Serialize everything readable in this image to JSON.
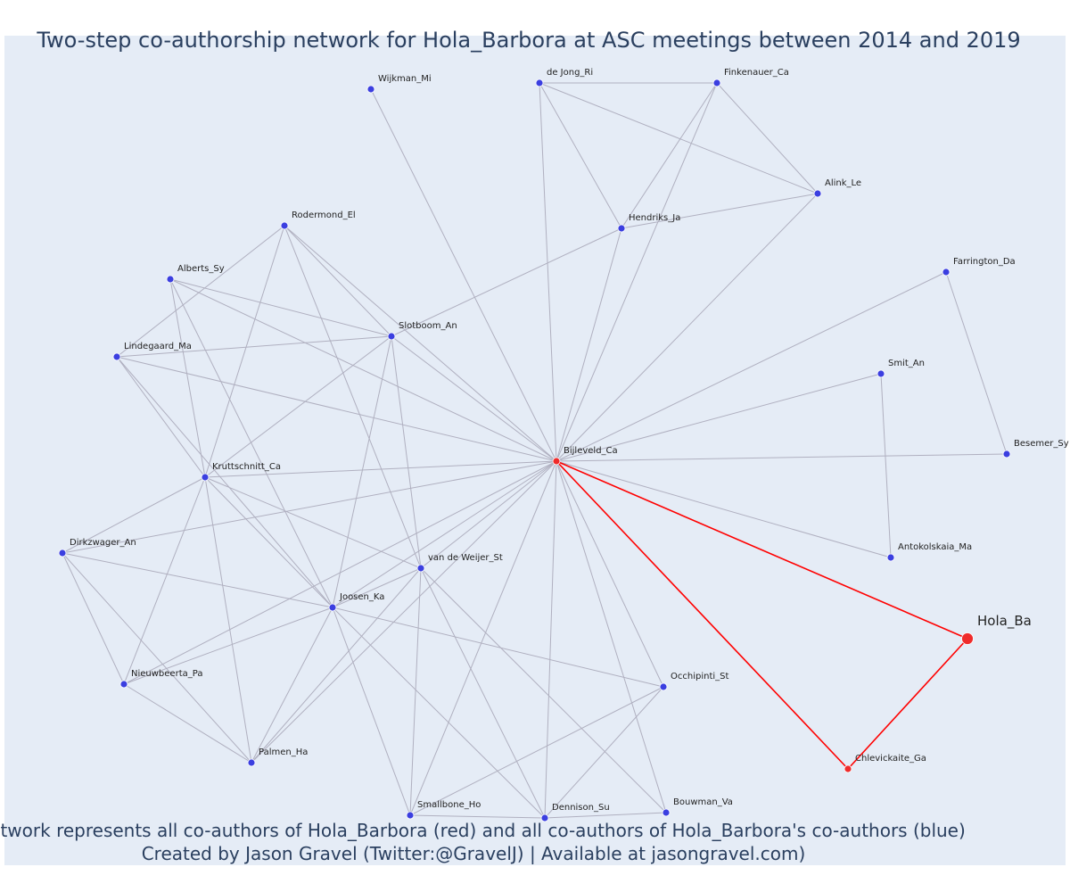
{
  "title": "Two-step co-authorship network for Hola_Barbora at ASC meetings between 2014 and 2019",
  "caption": {
    "line1": "Network represents all co-authors of Hola_Barbora (red) and all co-authors of Hola_Barbora's co-authors (blue)",
    "line2": "Created by Jason Gravel (Twitter:@GravelJ) | Available at jasongravel.com)"
  },
  "colors": {
    "background": "#e5ecf6",
    "blue_node": "#3b3fe0",
    "red_node": "#ef2b2b",
    "gray_edge": "#b0b0c0",
    "red_edge": "#ff0000",
    "text": "#2a3f5f"
  },
  "nodes": [
    {
      "id": "Wijkman_Mi",
      "label": "Wijkman_Mi",
      "group": "blue"
    },
    {
      "id": "de Jong_Ri",
      "label": "de Jong_Ri",
      "group": "blue"
    },
    {
      "id": "Finkenauer_Ca",
      "label": "Finkenauer_Ca",
      "group": "blue"
    },
    {
      "id": "Alink_Le",
      "label": "Alink_Le",
      "group": "blue"
    },
    {
      "id": "Hendriks_Ja",
      "label": "Hendriks_Ja",
      "group": "blue"
    },
    {
      "id": "Rodermond_El",
      "label": "Rodermond_El",
      "group": "blue"
    },
    {
      "id": "Alberts_Sy",
      "label": "Alberts_Sy",
      "group": "blue"
    },
    {
      "id": "Slotboom_An",
      "label": "Slotboom_An",
      "group": "blue"
    },
    {
      "id": "Lindegaard_Ma",
      "label": "Lindegaard_Ma",
      "group": "blue"
    },
    {
      "id": "Farrington_Da",
      "label": "Farrington_Da",
      "group": "blue"
    },
    {
      "id": "Smit_An",
      "label": "Smit_An",
      "group": "blue"
    },
    {
      "id": "Bijleveld_Ca",
      "label": "Bijleveld_Ca",
      "group": "red"
    },
    {
      "id": "Besemer_Sy",
      "label": "Besemer_Sy",
      "group": "blue"
    },
    {
      "id": "Kruttschnitt_Ca",
      "label": "Kruttschnitt_Ca",
      "group": "blue"
    },
    {
      "id": "Dirkzwager_An",
      "label": "Dirkzwager_An",
      "group": "blue"
    },
    {
      "id": "van de Weijer_St",
      "label": "van de Weijer_St",
      "group": "blue"
    },
    {
      "id": "Antokolskaia_Ma",
      "label": "Antokolskaia_Ma",
      "group": "blue"
    },
    {
      "id": "Joosen_Ka",
      "label": "Joosen_Ka",
      "group": "blue"
    },
    {
      "id": "Hola_Ba",
      "label": "Hola_Ba",
      "group": "focal"
    },
    {
      "id": "Nieuwbeerta_Pa",
      "label": "Nieuwbeerta_Pa",
      "group": "blue"
    },
    {
      "id": "Occhipinti_St",
      "label": "Occhipinti_St",
      "group": "blue"
    },
    {
      "id": "Palmen_Ha",
      "label": "Palmen_Ha",
      "group": "blue"
    },
    {
      "id": "Chlevickaite_Ga",
      "label": "Chlevickaite_Ga",
      "group": "red"
    },
    {
      "id": "Smallbone_Ho",
      "label": "Smallbone_Ho",
      "group": "blue"
    },
    {
      "id": "Dennison_Su",
      "label": "Dennison_Su",
      "group": "blue"
    },
    {
      "id": "Bouwman_Va",
      "label": "Bouwman_Va",
      "group": "blue"
    }
  ],
  "edges": [
    [
      "Bijleveld_Ca",
      "Hola_Ba",
      "red"
    ],
    [
      "Bijleveld_Ca",
      "Chlevickaite_Ga",
      "red"
    ],
    [
      "Hola_Ba",
      "Chlevickaite_Ga",
      "red"
    ],
    [
      "Bijleveld_Ca",
      "Wijkman_Mi",
      "gray"
    ],
    [
      "Bijleveld_Ca",
      "de Jong_Ri",
      "gray"
    ],
    [
      "Bijleveld_Ca",
      "Finkenauer_Ca",
      "gray"
    ],
    [
      "Bijleveld_Ca",
      "Alink_Le",
      "gray"
    ],
    [
      "Bijleveld_Ca",
      "Hendriks_Ja",
      "gray"
    ],
    [
      "Bijleveld_Ca",
      "Farrington_Da",
      "gray"
    ],
    [
      "Bijleveld_Ca",
      "Smit_An",
      "gray"
    ],
    [
      "Bijleveld_Ca",
      "Besemer_Sy",
      "gray"
    ],
    [
      "Bijleveld_Ca",
      "Antokolskaia_Ma",
      "gray"
    ],
    [
      "Bijleveld_Ca",
      "Occhipinti_St",
      "gray"
    ],
    [
      "Bijleveld_Ca",
      "Bouwman_Va",
      "gray"
    ],
    [
      "Bijleveld_Ca",
      "Dennison_Su",
      "gray"
    ],
    [
      "Bijleveld_Ca",
      "Smallbone_Ho",
      "gray"
    ],
    [
      "Bijleveld_Ca",
      "Palmen_Ha",
      "gray"
    ],
    [
      "Bijleveld_Ca",
      "Nieuwbeerta_Pa",
      "gray"
    ],
    [
      "Bijleveld_Ca",
      "Joosen_Ka",
      "gray"
    ],
    [
      "Bijleveld_Ca",
      "van de Weijer_St",
      "gray"
    ],
    [
      "Bijleveld_Ca",
      "Dirkzwager_An",
      "gray"
    ],
    [
      "Bijleveld_Ca",
      "Kruttschnitt_Ca",
      "gray"
    ],
    [
      "Bijleveld_Ca",
      "Lindegaard_Ma",
      "gray"
    ],
    [
      "Bijleveld_Ca",
      "Slotboom_An",
      "gray"
    ],
    [
      "Bijleveld_Ca",
      "Alberts_Sy",
      "gray"
    ],
    [
      "Bijleveld_Ca",
      "Rodermond_El",
      "gray"
    ],
    [
      "de Jong_Ri",
      "Finkenauer_Ca",
      "gray"
    ],
    [
      "de Jong_Ri",
      "Alink_Le",
      "gray"
    ],
    [
      "de Jong_Ri",
      "Hendriks_Ja",
      "gray"
    ],
    [
      "Finkenauer_Ca",
      "Alink_Le",
      "gray"
    ],
    [
      "Finkenauer_Ca",
      "Hendriks_Ja",
      "gray"
    ],
    [
      "Hendriks_Ja",
      "Alink_Le",
      "gray"
    ],
    [
      "Hendriks_Ja",
      "Slotboom_An",
      "gray"
    ],
    [
      "Farrington_Da",
      "Besemer_Sy",
      "gray"
    ],
    [
      "Smit_An",
      "Antokolskaia_Ma",
      "gray"
    ],
    [
      "Rodermond_El",
      "Slotboom_An",
      "gray"
    ],
    [
      "Rodermond_El",
      "Lindegaard_Ma",
      "gray"
    ],
    [
      "Rodermond_El",
      "Kruttschnitt_Ca",
      "gray"
    ],
    [
      "Rodermond_El",
      "van de Weijer_St",
      "gray"
    ],
    [
      "Alberts_Sy",
      "Slotboom_An",
      "gray"
    ],
    [
      "Alberts_Sy",
      "Kruttschnitt_Ca",
      "gray"
    ],
    [
      "Alberts_Sy",
      "Joosen_Ka",
      "gray"
    ],
    [
      "Lindegaard_Ma",
      "Slotboom_An",
      "gray"
    ],
    [
      "Lindegaard_Ma",
      "Kruttschnitt_Ca",
      "gray"
    ],
    [
      "Lindegaard_Ma",
      "Joosen_Ka",
      "gray"
    ],
    [
      "Slotboom_An",
      "Kruttschnitt_Ca",
      "gray"
    ],
    [
      "Slotboom_An",
      "van de Weijer_St",
      "gray"
    ],
    [
      "Slotboom_An",
      "Joosen_Ka",
      "gray"
    ],
    [
      "Kruttschnitt_Ca",
      "Dirkzwager_An",
      "gray"
    ],
    [
      "Kruttschnitt_Ca",
      "van de Weijer_St",
      "gray"
    ],
    [
      "Kruttschnitt_Ca",
      "Joosen_Ka",
      "gray"
    ],
    [
      "Kruttschnitt_Ca",
      "Nieuwbeerta_Pa",
      "gray"
    ],
    [
      "Kruttschnitt_Ca",
      "Palmen_Ha",
      "gray"
    ],
    [
      "Dirkzwager_An",
      "Joosen_Ka",
      "gray"
    ],
    [
      "Dirkzwager_An",
      "Nieuwbeerta_Pa",
      "gray"
    ],
    [
      "Dirkzwager_An",
      "Palmen_Ha",
      "gray"
    ],
    [
      "van de Weijer_St",
      "Joosen_Ka",
      "gray"
    ],
    [
      "van de Weijer_St",
      "Smallbone_Ho",
      "gray"
    ],
    [
      "van de Weijer_St",
      "Dennison_Su",
      "gray"
    ],
    [
      "van de Weijer_St",
      "Bouwman_Va",
      "gray"
    ],
    [
      "van de Weijer_St",
      "Palmen_Ha",
      "gray"
    ],
    [
      "Joosen_Ka",
      "Nieuwbeerta_Pa",
      "gray"
    ],
    [
      "Joosen_Ka",
      "Occhipinti_St",
      "gray"
    ],
    [
      "Joosen_Ka",
      "Smallbone_Ho",
      "gray"
    ],
    [
      "Joosen_Ka",
      "Dennison_Su",
      "gray"
    ],
    [
      "Joosen_Ka",
      "Palmen_Ha",
      "gray"
    ],
    [
      "Nieuwbeerta_Pa",
      "Palmen_Ha",
      "gray"
    ],
    [
      "Occhipinti_St",
      "Smallbone_Ho",
      "gray"
    ],
    [
      "Occhipinti_St",
      "Dennison_Su",
      "gray"
    ],
    [
      "Smallbone_Ho",
      "Dennison_Su",
      "gray"
    ],
    [
      "Dennison_Su",
      "Bouwman_Va",
      "gray"
    ]
  ]
}
